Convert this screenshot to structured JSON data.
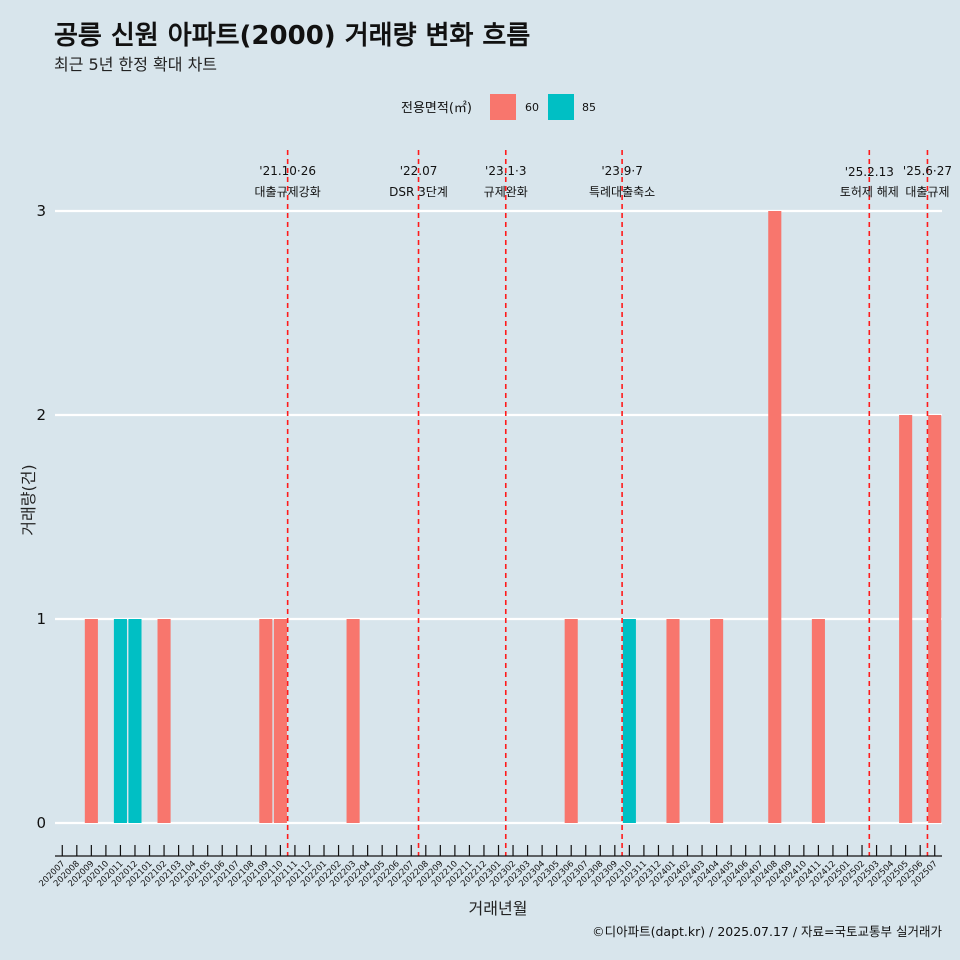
{
  "chart_data": {
    "type": "bar",
    "title": "공릉 신원 아파트(2000) 거래량 변화 흐름",
    "subtitle": "최근 5년 한정 확대 차트",
    "xlabel": "거래년월",
    "ylabel": "거래량(건)",
    "legend_title": "전용면적(㎡)",
    "legend_position": "top",
    "caption": "©디아파트(dapt.kr) / 2025.07.17 / 자료=국토교통부 실거래가",
    "ylim": [
      0,
      3
    ],
    "yticks": [
      "0",
      "1",
      "2",
      "3"
    ],
    "grid": true,
    "categories": [
      "202007",
      "202008",
      "202009",
      "202010",
      "202011",
      "202012",
      "202101",
      "202102",
      "202103",
      "202104",
      "202105",
      "202106",
      "202107",
      "202108",
      "202109",
      "202110",
      "202111",
      "202112",
      "202201",
      "202202",
      "202203",
      "202204",
      "202205",
      "202206",
      "202207",
      "202208",
      "202209",
      "202210",
      "202211",
      "202212",
      "202301",
      "202302",
      "202303",
      "202304",
      "202305",
      "202306",
      "202307",
      "202308",
      "202309",
      "202310",
      "202311",
      "202312",
      "202401",
      "202402",
      "202403",
      "202404",
      "202405",
      "202406",
      "202407",
      "202408",
      "202409",
      "202410",
      "202411",
      "202412",
      "202501",
      "202502",
      "202503",
      "202504",
      "202505",
      "202506",
      "202507"
    ],
    "series": [
      {
        "name": "60",
        "color": "#f8766d",
        "values": [
          0,
          0,
          1,
          0,
          0,
          0,
          0,
          1,
          0,
          0,
          0,
          0,
          0,
          0,
          1,
          1,
          0,
          0,
          0,
          0,
          1,
          0,
          0,
          0,
          0,
          0,
          0,
          0,
          0,
          0,
          0,
          0,
          0,
          0,
          0,
          1,
          0,
          0,
          0,
          0,
          0,
          0,
          1,
          0,
          0,
          1,
          0,
          0,
          0,
          3,
          0,
          0,
          1,
          0,
          0,
          0,
          0,
          0,
          2,
          0,
          2
        ]
      },
      {
        "name": "85",
        "color": "#00bfc4",
        "values": [
          0,
          0,
          0,
          0,
          1,
          1,
          0,
          0,
          0,
          0,
          0,
          0,
          0,
          0,
          0,
          0,
          0,
          0,
          0,
          0,
          0,
          0,
          0,
          0,
          0,
          0,
          0,
          0,
          0,
          0,
          0,
          0,
          0,
          0,
          0,
          0,
          0,
          0,
          0,
          1,
          0,
          0,
          0,
          0,
          0,
          0,
          0,
          0,
          0,
          0,
          0,
          0,
          0,
          0,
          0,
          0,
          0,
          0,
          0,
          0,
          0
        ]
      }
    ],
    "annotations": [
      {
        "index": 15.5,
        "date": "'21.10·26",
        "label": "대출규제강화"
      },
      {
        "index": 24.5,
        "date": "'22.07",
        "label": "DSR 3단계"
      },
      {
        "index": 30.5,
        "date": "'23.1·3",
        "label": "규제완화"
      },
      {
        "index": 38.5,
        "date": "'23.9·7",
        "label": "특례대출축소"
      },
      {
        "index": 55.5,
        "date": "'25.2.13",
        "label": "토허제 해제"
      },
      {
        "index": 59.5,
        "date": "'25.6·27",
        "label": "대출규제"
      }
    ]
  }
}
